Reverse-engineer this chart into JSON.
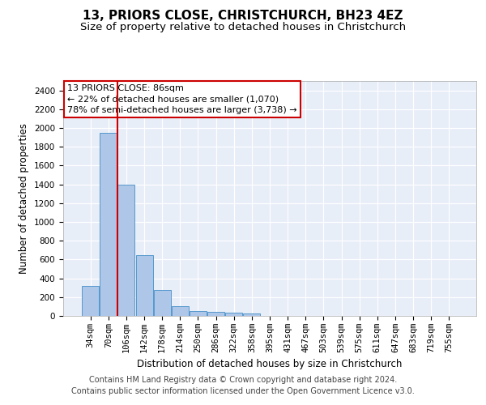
{
  "title": "13, PRIORS CLOSE, CHRISTCHURCH, BH23 4EZ",
  "subtitle": "Size of property relative to detached houses in Christchurch",
  "xlabel": "Distribution of detached houses by size in Christchurch",
  "ylabel": "Number of detached properties",
  "footer_line1": "Contains HM Land Registry data © Crown copyright and database right 2024.",
  "footer_line2": "Contains public sector information licensed under the Open Government Licence v3.0.",
  "bar_labels": [
    "34sqm",
    "70sqm",
    "106sqm",
    "142sqm",
    "178sqm",
    "214sqm",
    "250sqm",
    "286sqm",
    "322sqm",
    "358sqm",
    "395sqm",
    "431sqm",
    "467sqm",
    "503sqm",
    "539sqm",
    "575sqm",
    "611sqm",
    "647sqm",
    "683sqm",
    "719sqm",
    "755sqm"
  ],
  "bar_values": [
    320,
    1950,
    1400,
    650,
    275,
    100,
    50,
    40,
    35,
    22,
    0,
    0,
    0,
    0,
    0,
    0,
    0,
    0,
    0,
    0,
    0
  ],
  "bar_color": "#aec6e8",
  "bar_edge_color": "#5599cc",
  "vline_x": 1.5,
  "vline_color": "#cc0000",
  "annotation_line1": "13 PRIORS CLOSE: 86sqm",
  "annotation_line2": "← 22% of detached houses are smaller (1,070)",
  "annotation_line3": "78% of semi-detached houses are larger (3,738) →",
  "annotation_box_color": "#cc0000",
  "ylim": [
    0,
    2500
  ],
  "yticks": [
    0,
    200,
    400,
    600,
    800,
    1000,
    1200,
    1400,
    1600,
    1800,
    2000,
    2200,
    2400
  ],
  "bg_color": "#e8eef8",
  "grid_color": "#ffffff",
  "title_fontsize": 11,
  "subtitle_fontsize": 9.5,
  "axis_label_fontsize": 8.5,
  "tick_fontsize": 7.5,
  "footer_fontsize": 7,
  "annot_fontsize": 8
}
